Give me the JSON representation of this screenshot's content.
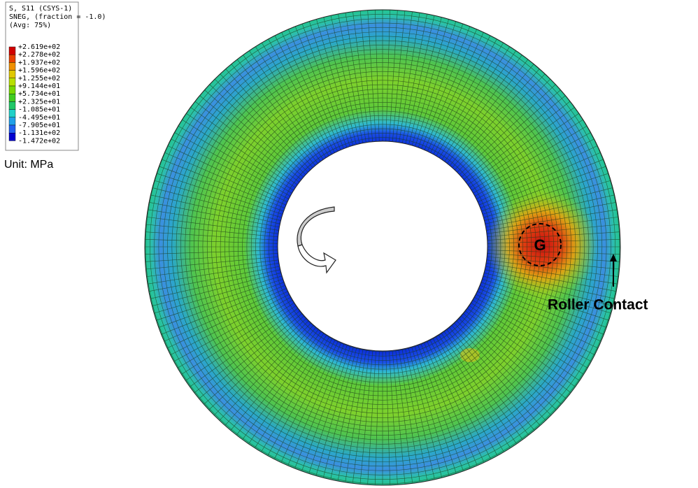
{
  "legend": {
    "title_lines": [
      "S, S11 (CSYS-1)",
      "SNEG, (fraction = -1.0)",
      "(Avg: 75%)"
    ],
    "values": [
      "+2.619e+02",
      "+2.278e+02",
      "+1.937e+02",
      "+1.596e+02",
      "+1.255e+02",
      "+9.144e+01",
      "+5.734e+01",
      "+2.325e+01",
      "-1.085e+01",
      "-4.495e+01",
      "-7.905e+01",
      "-1.131e+02",
      "-1.472e+02"
    ]
  },
  "unit": "Unit: MPa",
  "marker_label": "G",
  "contact_label": "Roller Contact"
}
